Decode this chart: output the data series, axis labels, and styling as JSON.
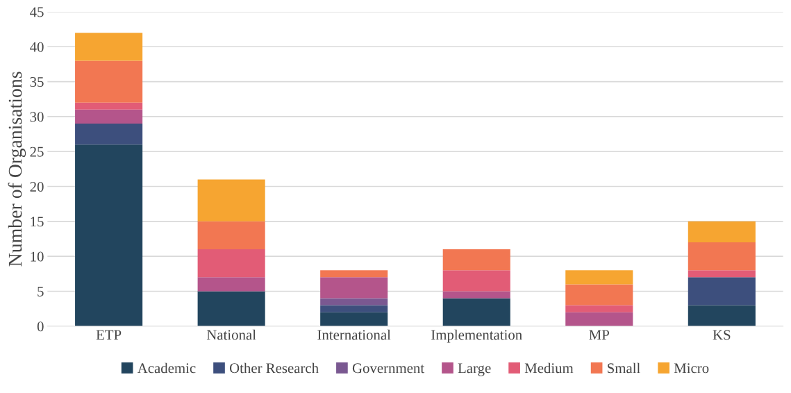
{
  "chart_data": {
    "type": "bar",
    "stacked": true,
    "ylabel": "Number of Organisations",
    "categories": [
      "ETP",
      "National",
      "International",
      "Implementation",
      "MP",
      "KS"
    ],
    "series": [
      {
        "name": "Academic",
        "color": "#22455e",
        "values": [
          26,
          5,
          2,
          4,
          0,
          3
        ]
      },
      {
        "name": "Other Research",
        "color": "#3d4f7d",
        "values": [
          3,
          0,
          1,
          0,
          0,
          4
        ]
      },
      {
        "name": "Government",
        "color": "#7a5891",
        "values": [
          0,
          0,
          1,
          0,
          0,
          0
        ]
      },
      {
        "name": "Large",
        "color": "#b4558b",
        "values": [
          2,
          2,
          3,
          1,
          2,
          0
        ]
      },
      {
        "name": "Medium",
        "color": "#e25c76",
        "values": [
          1,
          4,
          0,
          3,
          1,
          1
        ]
      },
      {
        "name": "Small",
        "color": "#f27752",
        "values": [
          6,
          4,
          1,
          3,
          3,
          4
        ]
      },
      {
        "name": "Micro",
        "color": "#f6a531",
        "values": [
          4,
          6,
          0,
          0,
          2,
          3
        ]
      }
    ],
    "ylim": [
      0,
      45
    ],
    "yticks": [
      0,
      5,
      10,
      15,
      20,
      25,
      30,
      35,
      40,
      45
    ],
    "grid": "y",
    "legend": "bottom"
  }
}
